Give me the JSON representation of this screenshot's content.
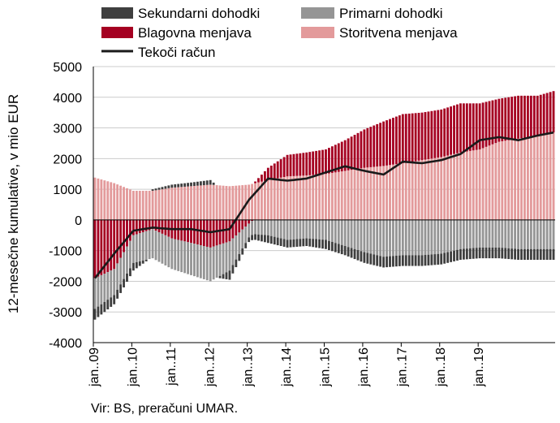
{
  "chart_data": {
    "type": "bar",
    "stacked": true,
    "ylabel": "12-mesečne kumulative, v mio EUR",
    "ylim": [
      -4000,
      5000
    ],
    "yticks": [
      -4000,
      -3000,
      -2000,
      -1000,
      0,
      1000,
      2000,
      3000,
      4000,
      5000
    ],
    "ytick_labels": [
      "-4000",
      "-3000",
      "-2000",
      "-1000",
      "0",
      "1000",
      "2000",
      "3000",
      "4000",
      "5000"
    ],
    "xtick_labels": [
      "jan..09",
      "jan..10",
      "jan..11",
      "jan..12",
      "jan..13",
      "jan..14",
      "jan..15",
      "jan..16",
      "jan..17",
      "jan..18",
      "jan..19"
    ],
    "grid": true,
    "legend_position": "top",
    "source": "Vir: BS, preračuni UMAR.",
    "colors": {
      "secondary": "#3f3f3f",
      "primary": "#959595",
      "goods": "#a50021",
      "services": "#e39a9b",
      "current": "#1a1a1a",
      "grid": "#cccccc"
    },
    "anchors": {
      "x_month_index": [
        0,
        6,
        12,
        18,
        24,
        30,
        36,
        42,
        48,
        54,
        60,
        66,
        72,
        78,
        84,
        90,
        96,
        102,
        108,
        114,
        120,
        126,
        132,
        138,
        143
      ],
      "services": [
        1380,
        1200,
        950,
        950,
        1050,
        1100,
        1150,
        1100,
        1150,
        1300,
        1420,
        1450,
        1500,
        1600,
        1700,
        1760,
        1850,
        1950,
        2050,
        2200,
        2300,
        2550,
        2650,
        2750,
        2850
      ],
      "goods": [
        -1900,
        -1600,
        -500,
        -300,
        -600,
        -750,
        -900,
        -700,
        -120,
        400,
        700,
        750,
        800,
        1000,
        1250,
        1450,
        1600,
        1550,
        1550,
        1600,
        1500,
        1400,
        1400,
        1300,
        1350
      ],
      "primary": [
        -1000,
        -850,
        -900,
        -950,
        -1000,
        -1050,
        -1100,
        -950,
        -450,
        -500,
        -650,
        -600,
        -650,
        -850,
        -1050,
        -1200,
        -1150,
        -1150,
        -1100,
        -950,
        -900,
        -900,
        -950,
        -950,
        -950
      ],
      "secondary": [
        -350,
        -300,
        -250,
        50,
        100,
        120,
        150,
        -300,
        -150,
        -250,
        -250,
        -250,
        -300,
        -300,
        -350,
        -350,
        -350,
        -350,
        -350,
        -350,
        -350,
        -350,
        -350,
        -350,
        -350
      ],
      "current": [
        -1900,
        -1100,
        -350,
        -250,
        -300,
        -300,
        -400,
        -300,
        650,
        1350,
        1280,
        1350,
        1550,
        1750,
        1600,
        1480,
        1900,
        1850,
        1950,
        2150,
        2600,
        2700,
        2600,
        2750,
        2850
      ]
    }
  },
  "legend": {
    "secondary": "Sekundarni dohodki",
    "primary": "Primarni dohodki",
    "goods": "Blagovna menjava",
    "services": "Storitvena menjava",
    "current": "Tekoči račun"
  }
}
